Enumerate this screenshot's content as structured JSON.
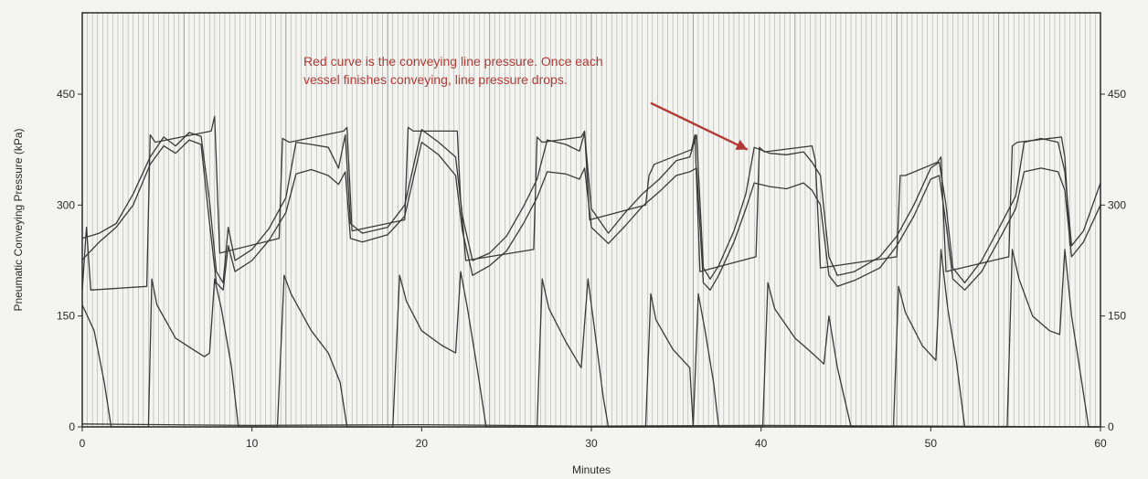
{
  "chart_data": {
    "type": "line",
    "xlabel": "Minutes",
    "ylabel": "Pneumatic Conveying Pressure (kPa)",
    "xlim": [
      0,
      60
    ],
    "ylim": [
      0,
      560
    ],
    "x_ticks": [
      0,
      10,
      20,
      30,
      40,
      50,
      60
    ],
    "y_ticks_left": [
      0,
      150,
      300,
      450
    ],
    "y_ticks_right": [
      0,
      150,
      300,
      450
    ],
    "grid": "vertical lines",
    "annotation": {
      "lines": [
        "Red curve is the conveying line pressure. Once each",
        "vessel finishes conveying, line pressure drops."
      ],
      "arrow_tail": [
        33.5,
        438
      ],
      "arrow_head": [
        39.2,
        375
      ]
    },
    "colors": {
      "background": "#f4f4f1",
      "grid": "#8a8a8a",
      "line": "#3a3a3a",
      "annotation": "#b23a35"
    },
    "series": [
      {
        "values": [
          [
            0,
            255
          ],
          [
            1,
            262
          ],
          [
            2,
            275
          ],
          [
            3,
            315
          ],
          [
            4,
            365
          ],
          [
            4.8,
            392
          ],
          [
            5.5,
            380
          ],
          [
            6.3,
            398
          ],
          [
            7,
            393
          ],
          [
            7.5,
            305
          ],
          [
            7.9,
            210
          ],
          [
            8.3,
            195
          ],
          [
            8.6,
            270
          ],
          [
            9,
            225
          ],
          [
            10,
            240
          ],
          [
            11,
            268
          ],
          [
            12,
            310
          ],
          [
            12.6,
            385
          ],
          [
            13.5,
            382
          ],
          [
            14.5,
            378
          ],
          [
            15.1,
            350
          ],
          [
            15.5,
            395
          ],
          [
            15.8,
            275
          ],
          [
            16.5,
            262
          ],
          [
            18,
            270
          ],
          [
            19,
            300
          ],
          [
            20,
            402
          ],
          [
            21,
            385
          ],
          [
            22,
            365
          ],
          [
            22.4,
            285
          ],
          [
            23,
            225
          ],
          [
            24,
            235
          ],
          [
            25,
            258
          ],
          [
            26,
            298
          ],
          [
            26.8,
            335
          ],
          [
            27.4,
            388
          ],
          [
            28.5,
            382
          ],
          [
            29.3,
            373
          ],
          [
            29.6,
            398
          ],
          [
            30,
            295
          ],
          [
            31,
            262
          ],
          [
            32,
            290
          ],
          [
            33,
            315
          ],
          [
            34,
            335
          ],
          [
            35,
            360
          ],
          [
            35.8,
            365
          ],
          [
            36.2,
            395
          ],
          [
            36.6,
            215
          ],
          [
            37,
            200
          ],
          [
            37.5,
            218
          ],
          [
            38.4,
            265
          ],
          [
            39.1,
            315
          ],
          [
            39.6,
            378
          ],
          [
            40.5,
            370
          ],
          [
            41.5,
            368
          ],
          [
            42.5,
            372
          ],
          [
            43,
            358
          ],
          [
            43.5,
            340
          ],
          [
            44,
            230
          ],
          [
            44.5,
            205
          ],
          [
            45.5,
            210
          ],
          [
            47,
            230
          ],
          [
            48,
            258
          ],
          [
            49,
            300
          ],
          [
            50,
            350
          ],
          [
            50.5,
            358
          ],
          [
            50.9,
            300
          ],
          [
            51.3,
            215
          ],
          [
            52,
            195
          ],
          [
            53,
            225
          ],
          [
            54,
            268
          ],
          [
            55,
            312
          ],
          [
            55.5,
            385
          ],
          [
            56.5,
            390
          ],
          [
            57.5,
            385
          ],
          [
            57.9,
            345
          ],
          [
            58.3,
            245
          ],
          [
            59,
            265
          ],
          [
            60,
            330
          ]
        ]
      },
      {
        "values": [
          [
            0,
            226
          ],
          [
            1,
            250
          ],
          [
            2,
            270
          ],
          [
            3,
            300
          ],
          [
            4,
            355
          ],
          [
            4.8,
            380
          ],
          [
            5.5,
            370
          ],
          [
            6.3,
            388
          ],
          [
            7,
            382
          ],
          [
            7.5,
            275
          ],
          [
            7.9,
            195
          ],
          [
            8.3,
            185
          ],
          [
            8.6,
            245
          ],
          [
            9,
            210
          ],
          [
            10,
            225
          ],
          [
            11,
            252
          ],
          [
            12,
            290
          ],
          [
            12.6,
            342
          ],
          [
            13.5,
            348
          ],
          [
            14.5,
            340
          ],
          [
            15.1,
            328
          ],
          [
            15.5,
            345
          ],
          [
            15.8,
            255
          ],
          [
            16.5,
            250
          ],
          [
            18,
            260
          ],
          [
            19,
            285
          ],
          [
            20,
            385
          ],
          [
            21,
            368
          ],
          [
            22,
            340
          ],
          [
            22.4,
            265
          ],
          [
            23,
            205
          ],
          [
            24,
            218
          ],
          [
            25,
            238
          ],
          [
            26,
            275
          ],
          [
            26.8,
            310
          ],
          [
            27.4,
            345
          ],
          [
            28.5,
            342
          ],
          [
            29.3,
            335
          ],
          [
            29.6,
            350
          ],
          [
            30,
            270
          ],
          [
            31,
            248
          ],
          [
            32,
            272
          ],
          [
            33,
            298
          ],
          [
            34,
            318
          ],
          [
            35,
            340
          ],
          [
            35.8,
            345
          ],
          [
            36.2,
            350
          ],
          [
            36.6,
            195
          ],
          [
            37,
            185
          ],
          [
            37.5,
            205
          ],
          [
            38.4,
            250
          ],
          [
            39.1,
            295
          ],
          [
            39.6,
            330
          ],
          [
            40.5,
            325
          ],
          [
            41.5,
            322
          ],
          [
            42.5,
            330
          ],
          [
            43,
            320
          ],
          [
            43.5,
            300
          ],
          [
            44,
            205
          ],
          [
            44.5,
            190
          ],
          [
            45.5,
            198
          ],
          [
            47,
            215
          ],
          [
            48,
            245
          ],
          [
            49,
            285
          ],
          [
            50,
            335
          ],
          [
            50.5,
            340
          ],
          [
            50.9,
            275
          ],
          [
            51.3,
            200
          ],
          [
            52,
            185
          ],
          [
            53,
            210
          ],
          [
            54,
            252
          ],
          [
            55,
            295
          ],
          [
            55.5,
            345
          ],
          [
            56.5,
            350
          ],
          [
            57.5,
            345
          ],
          [
            57.9,
            320
          ],
          [
            58.3,
            230
          ],
          [
            59,
            250
          ],
          [
            60,
            300
          ]
        ]
      },
      {
        "values": [
          [
            0,
            165
          ],
          [
            0.7,
            130
          ],
          [
            1.3,
            60
          ],
          [
            1.7,
            0
          ],
          [
            3.9,
            0
          ],
          [
            4.1,
            200
          ],
          [
            4.4,
            165
          ],
          [
            5.5,
            120
          ],
          [
            6.5,
            105
          ],
          [
            7.2,
            95
          ],
          [
            7.5,
            100
          ],
          [
            7.8,
            200
          ],
          [
            8.2,
            160
          ],
          [
            8.8,
            80
          ],
          [
            9.2,
            0
          ],
          [
            11.5,
            0
          ],
          [
            11.9,
            205
          ],
          [
            12.3,
            180
          ],
          [
            13.5,
            130
          ],
          [
            14.5,
            100
          ],
          [
            15.2,
            60
          ],
          [
            15.6,
            0
          ],
          [
            18.3,
            0
          ],
          [
            18.7,
            205
          ],
          [
            19.1,
            170
          ],
          [
            20,
            130
          ],
          [
            21.2,
            110
          ],
          [
            22,
            100
          ],
          [
            22.3,
            210
          ],
          [
            22.7,
            160
          ],
          [
            23.3,
            75
          ],
          [
            23.8,
            0
          ],
          [
            26.8,
            0
          ],
          [
            27.1,
            200
          ],
          [
            27.5,
            160
          ],
          [
            28.5,
            115
          ],
          [
            29.4,
            80
          ],
          [
            29.8,
            200
          ],
          [
            30.2,
            130
          ],
          [
            30.7,
            40
          ],
          [
            31,
            0
          ],
          [
            33.2,
            0
          ],
          [
            33.5,
            180
          ],
          [
            33.8,
            145
          ],
          [
            34.8,
            105
          ],
          [
            35.8,
            80
          ],
          [
            36,
            0
          ],
          [
            36.3,
            180
          ],
          [
            36.7,
            130
          ],
          [
            37.2,
            60
          ],
          [
            37.5,
            0
          ],
          [
            40.1,
            0
          ],
          [
            40.4,
            195
          ],
          [
            40.8,
            160
          ],
          [
            42,
            120
          ],
          [
            43,
            100
          ],
          [
            43.7,
            85
          ],
          [
            44,
            150
          ],
          [
            44.5,
            80
          ],
          [
            45,
            30
          ],
          [
            45.3,
            0
          ],
          [
            47.8,
            0
          ],
          [
            48.1,
            190
          ],
          [
            48.5,
            155
          ],
          [
            49.5,
            110
          ],
          [
            50.3,
            90
          ],
          [
            50.6,
            240
          ],
          [
            51,
            160
          ],
          [
            51.5,
            90
          ],
          [
            52,
            0
          ],
          [
            54.5,
            0
          ],
          [
            54.8,
            240
          ],
          [
            55.2,
            200
          ],
          [
            56,
            150
          ],
          [
            57,
            130
          ],
          [
            57.6,
            125
          ],
          [
            57.9,
            240
          ],
          [
            58.3,
            150
          ],
          [
            58.9,
            60
          ],
          [
            59.3,
            0
          ],
          [
            60,
            0
          ]
        ]
      },
      {
        "values": [
          [
            0,
            185
          ],
          [
            0.25,
            270
          ],
          [
            0.5,
            185
          ],
          [
            3.8,
            190
          ],
          [
            4.0,
            395
          ],
          [
            4.3,
            385
          ],
          [
            7.6,
            400
          ],
          [
            7.8,
            420
          ],
          [
            8.1,
            235
          ],
          [
            11.6,
            255
          ],
          [
            11.8,
            390
          ],
          [
            12.2,
            385
          ],
          [
            15.4,
            400
          ],
          [
            15.6,
            405
          ],
          [
            15.9,
            265
          ],
          [
            19.0,
            280
          ],
          [
            19.2,
            405
          ],
          [
            19.5,
            400
          ],
          [
            22.1,
            400
          ],
          [
            22.3,
            305
          ],
          [
            22.6,
            225
          ],
          [
            26.6,
            240
          ],
          [
            26.8,
            392
          ],
          [
            27.1,
            385
          ],
          [
            29.4,
            392
          ],
          [
            29.6,
            400
          ],
          [
            29.9,
            280
          ],
          [
            33.2,
            300
          ],
          [
            33.4,
            340
          ],
          [
            33.7,
            355
          ],
          [
            35.9,
            375
          ],
          [
            36.1,
            395
          ],
          [
            36.4,
            210
          ],
          [
            39.7,
            230
          ],
          [
            39.9,
            378
          ],
          [
            40.2,
            372
          ],
          [
            43.0,
            380
          ],
          [
            43.2,
            360
          ],
          [
            43.5,
            215
          ],
          [
            48.0,
            230
          ],
          [
            48.2,
            340
          ],
          [
            48.5,
            340
          ],
          [
            50.4,
            358
          ],
          [
            50.6,
            365
          ],
          [
            50.9,
            210
          ],
          [
            54.6,
            230
          ],
          [
            54.8,
            380
          ],
          [
            55.1,
            385
          ],
          [
            57.7,
            392
          ],
          [
            57.9,
            365
          ],
          [
            58.2,
            245
          ]
        ]
      },
      {
        "values": [
          [
            0,
            4
          ],
          [
            10,
            2
          ],
          [
            20,
            3
          ],
          [
            30,
            1
          ],
          [
            40,
            2
          ],
          [
            50,
            1
          ],
          [
            60,
            0
          ]
        ]
      }
    ]
  }
}
